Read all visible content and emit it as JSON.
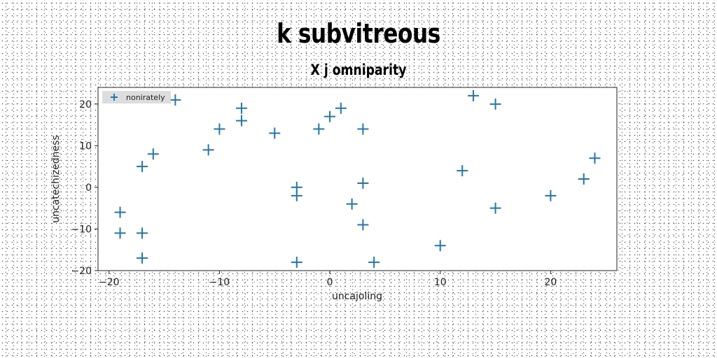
{
  "chart_data": {
    "type": "scatter",
    "title": "k subvitreous",
    "subtitle": "X j omniparity",
    "xlabel": "uncajoling",
    "ylabel": "uncatechizedness",
    "xlim": [
      -21,
      26
    ],
    "ylim": [
      -20,
      24
    ],
    "xticks": [
      -20,
      -10,
      0,
      10,
      20
    ],
    "yticks": [
      -20,
      -10,
      0,
      10,
      20
    ],
    "grid": false,
    "legend_position": "top-left",
    "series": [
      {
        "name": "nonirately",
        "color": "#1f77b4",
        "marker": "plus",
        "points": [
          [
            -19,
            -6
          ],
          [
            -19,
            -11
          ],
          [
            -17,
            -11
          ],
          [
            -17,
            -17
          ],
          [
            -17,
            5
          ],
          [
            -16,
            8
          ],
          [
            -14,
            21
          ],
          [
            -11,
            9
          ],
          [
            -10,
            14
          ],
          [
            -8,
            19
          ],
          [
            -8,
            16
          ],
          [
            -5,
            13
          ],
          [
            -3,
            0
          ],
          [
            -3,
            -2
          ],
          [
            -3,
            -18
          ],
          [
            -1,
            14
          ],
          [
            0,
            17
          ],
          [
            1,
            19
          ],
          [
            2,
            -4
          ],
          [
            3,
            14
          ],
          [
            3,
            1
          ],
          [
            3,
            -9
          ],
          [
            4,
            -18
          ],
          [
            10,
            -14
          ],
          [
            12,
            4
          ],
          [
            13,
            22
          ],
          [
            15,
            20
          ],
          [
            15,
            -5
          ],
          [
            20,
            -2
          ],
          [
            23,
            2
          ],
          [
            24,
            7
          ]
        ]
      }
    ]
  }
}
